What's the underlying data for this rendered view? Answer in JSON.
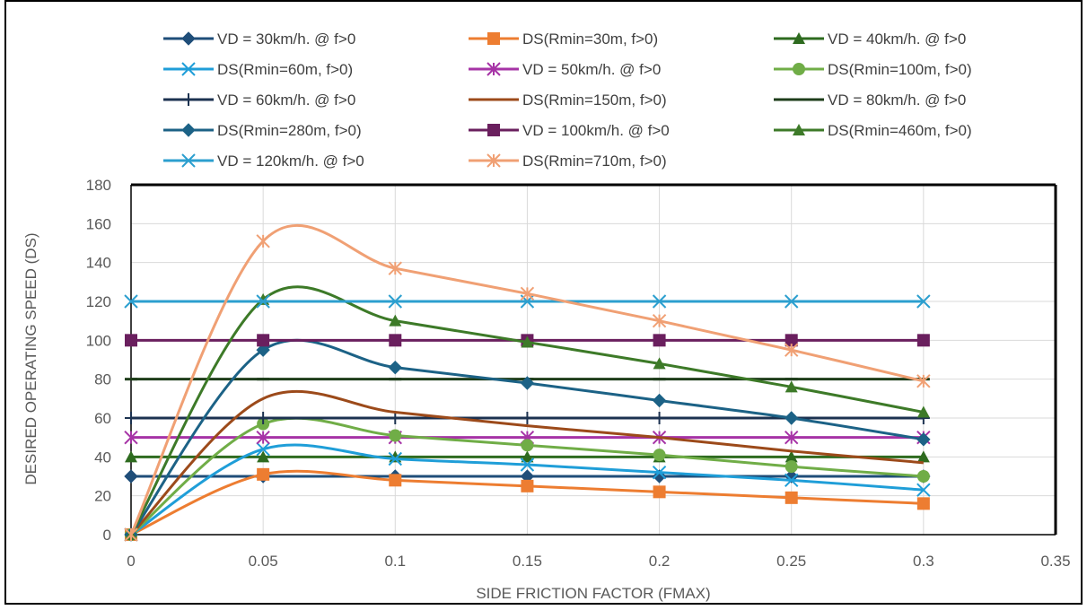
{
  "chart_data": {
    "type": "line",
    "smooth": true,
    "title": "",
    "xlabel": "SIDE FRICTION FACTOR (FMAX)",
    "ylabel": "DESIRED OPERATING SPEED (DS)",
    "xlim": [
      0,
      0.35
    ],
    "ylim": [
      0,
      180
    ],
    "x_ticks": [
      "0",
      "0.05",
      "0.1",
      "0.15",
      "0.2",
      "0.25",
      "0.3",
      "0.35"
    ],
    "y_ticks": [
      "0",
      "20",
      "40",
      "60",
      "80",
      "100",
      "120",
      "140",
      "160",
      "180"
    ],
    "grid": "both",
    "legend_position": "top",
    "x": [
      0,
      0.05,
      0.1,
      0.15,
      0.2,
      0.25,
      0.3
    ],
    "series": [
      {
        "name": "VD = 30km/h. @ f>0",
        "color": "#1f4e79",
        "marker": "diamond",
        "values": [
          30,
          30,
          30,
          30,
          30,
          30,
          30
        ]
      },
      {
        "name": "DS(Rmin=30m, f>0)",
        "color": "#ed7d31",
        "marker": "square",
        "values": [
          0,
          31,
          28,
          25,
          22,
          19,
          16
        ]
      },
      {
        "name": "VD = 40km/h. @ f>0",
        "color": "#2e6b1f",
        "marker": "triangle",
        "values": [
          40,
          40,
          40,
          40,
          40,
          40,
          40
        ]
      },
      {
        "name": "DS(Rmin=60m, f>0)",
        "color": "#1f9ed8",
        "marker": "x",
        "values": [
          0,
          44,
          39,
          36,
          32,
          28,
          23
        ]
      },
      {
        "name": "VD = 50km/h. @ f>0",
        "color": "#a633a6",
        "marker": "star",
        "values": [
          50,
          50,
          50,
          50,
          50,
          50,
          50
        ]
      },
      {
        "name": "DS(Rmin=100m, f>0)",
        "color": "#70ad47",
        "marker": "circle",
        "values": [
          0,
          57,
          51,
          46,
          41,
          35,
          30
        ]
      },
      {
        "name": "VD = 60km/h. @ f>0",
        "color": "#1c3250",
        "marker": "plus",
        "values": [
          60,
          60,
          60,
          60,
          60,
          60,
          60
        ]
      },
      {
        "name": "DS(Rmin=150m, f>0)",
        "color": "#9c4a1a",
        "marker": "none",
        "values": [
          0,
          70,
          63,
          56,
          50,
          43,
          37
        ]
      },
      {
        "name": "VD = 80km/h. @ f>0",
        "color": "#1e3d1a",
        "marker": "dash",
        "values": [
          80,
          80,
          80,
          80,
          80,
          80,
          80
        ]
      },
      {
        "name": "DS(Rmin=280m, f>0)",
        "color": "#1c6286",
        "marker": "diamond",
        "values": [
          0,
          95,
          86,
          78,
          69,
          60,
          49
        ]
      },
      {
        "name": "VD = 100km/h. @ f>0",
        "color": "#6a1f5e",
        "marker": "square",
        "values": [
          100,
          100,
          100,
          100,
          100,
          100,
          100
        ]
      },
      {
        "name": "DS(Rmin=460m, f>0)",
        "color": "#3d7a28",
        "marker": "triangle",
        "values": [
          0,
          121,
          110,
          99,
          88,
          76,
          63
        ]
      },
      {
        "name": "VD = 120km/h. @ f>0",
        "color": "#2c9fcf",
        "marker": "x",
        "values": [
          120,
          120,
          120,
          120,
          120,
          120,
          120
        ]
      },
      {
        "name": "DS(Rmin=710m, f>0)",
        "color": "#f0a074",
        "marker": "star",
        "values": [
          0,
          151,
          137,
          124,
          110,
          95,
          79
        ]
      }
    ]
  }
}
